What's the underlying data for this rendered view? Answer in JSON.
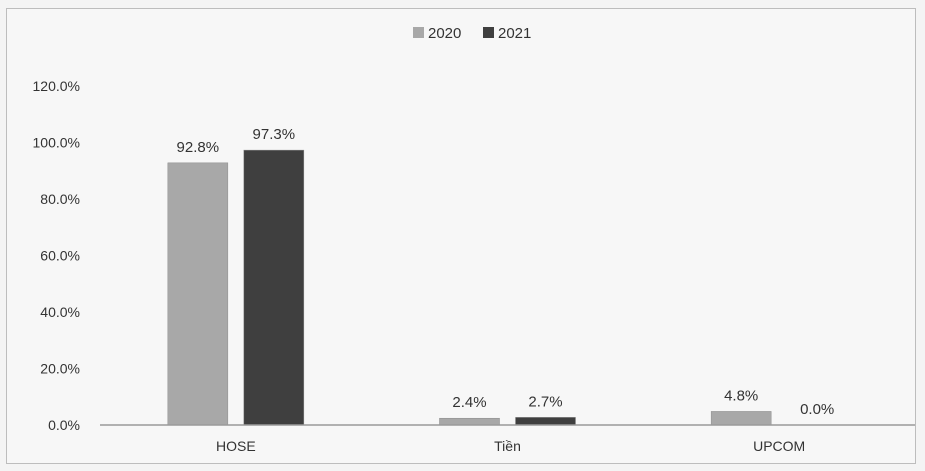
{
  "chart_data": {
    "type": "bar",
    "categories": [
      "HOSE",
      "Tiền",
      "UPCOM"
    ],
    "series": [
      {
        "name": "2020",
        "values": [
          92.8,
          2.4,
          4.8
        ],
        "labels": [
          "92.8%",
          "2.4%",
          "4.8%"
        ],
        "color": "#a8a8a8"
      },
      {
        "name": "2021",
        "values": [
          97.3,
          2.7,
          0.0
        ],
        "labels": [
          "97.3%",
          "2.7%",
          "0.0%"
        ],
        "color": "#3f3f3f"
      }
    ],
    "ylim": [
      0,
      120
    ],
    "yticks": [
      0,
      20,
      40,
      60,
      80,
      100,
      120
    ],
    "ytick_labels": [
      "0.0%",
      "20.0%",
      "40.0%",
      "60.0%",
      "80.0%",
      "100.0%",
      "120.0%"
    ],
    "grid": false,
    "legend": "top-center",
    "title": "",
    "xlabel": "",
    "ylabel": ""
  }
}
